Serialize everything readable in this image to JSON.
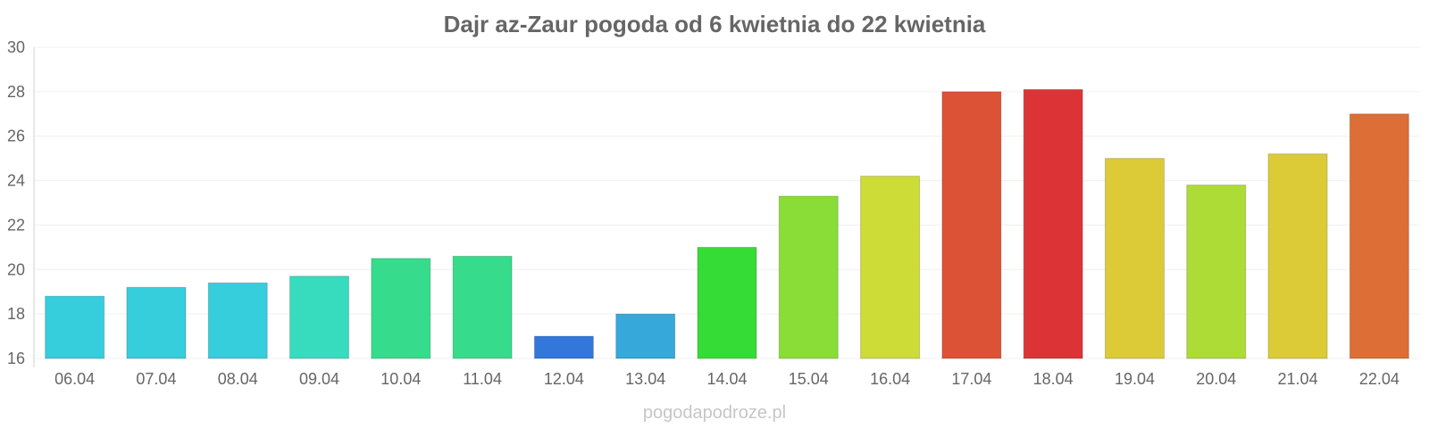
{
  "chart_data": {
    "type": "bar",
    "title": "Dajr az-Zaur pogoda od 6 kwietnia do 22 kwietnia",
    "categories": [
      "06.04",
      "07.04",
      "08.04",
      "09.04",
      "10.04",
      "11.04",
      "12.04",
      "13.04",
      "14.04",
      "15.04",
      "16.04",
      "17.04",
      "18.04",
      "19.04",
      "20.04",
      "21.04",
      "22.04"
    ],
    "values": [
      18.8,
      19.2,
      19.4,
      19.7,
      20.5,
      20.6,
      17.0,
      18.0,
      21.0,
      23.3,
      24.2,
      28.0,
      28.1,
      25.0,
      23.8,
      25.2,
      27.0
    ],
    "colors": [
      "#36cddc",
      "#36cddc",
      "#36cddc",
      "#36dcbd",
      "#36dc8b",
      "#36dc8b",
      "#3477db",
      "#36a8da",
      "#36dc36",
      "#8adc36",
      "#cddc36",
      "#dc5236",
      "#dc3436",
      "#dccb36",
      "#addc36",
      "#dccb36",
      "#dc6e36"
    ],
    "ylim": [
      16,
      30
    ],
    "yticks": [
      16,
      18,
      20,
      22,
      24,
      26,
      28,
      30
    ],
    "grid": true,
    "xlabel": "",
    "ylabel": ""
  },
  "watermark": "pogodapodroze.pl"
}
